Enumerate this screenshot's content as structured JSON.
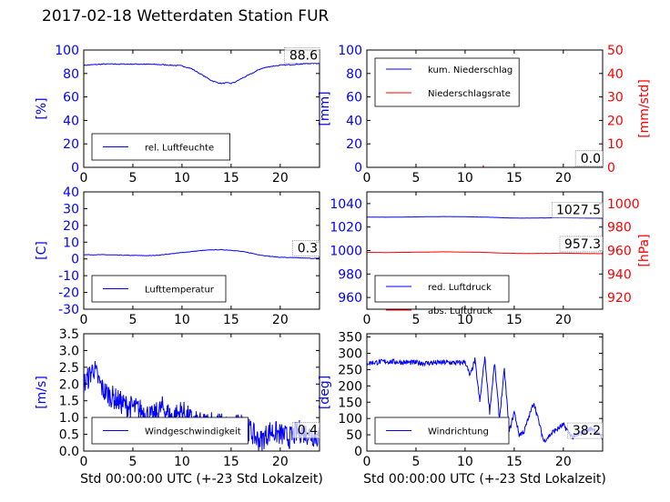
{
  "title": "2017-02-18 Wetterdaten Station FUR",
  "xlabel": "Std 00:00:00 UTC (+-23 Std Lokalzeit)",
  "colors": {
    "blue": "#0000ff",
    "red": "#ff0000",
    "black": "#000000"
  },
  "chart_data": [
    {
      "id": "humidity",
      "type": "line",
      "ylabel": "[%]",
      "ylabel_color": "#0000ff",
      "tick_color": "#0000ff",
      "xlim": [
        0,
        24
      ],
      "ylim": [
        0,
        100
      ],
      "xticks": [
        0,
        5,
        10,
        15,
        20
      ],
      "yticks": [
        0,
        20,
        40,
        60,
        80,
        100
      ],
      "grid": false,
      "legend_position": "lower-left",
      "series": [
        {
          "name": "rel. Luftfeuchte",
          "color": "#0000ff",
          "noise": 0.4,
          "x": [
            0,
            1,
            2,
            4,
            6,
            8,
            10,
            11,
            12,
            13,
            13.5,
            14,
            14.5,
            15,
            15.5,
            16,
            17,
            18,
            19,
            20,
            21,
            22,
            23,
            24
          ],
          "y": [
            87,
            87.5,
            88,
            88,
            88,
            87.5,
            86.5,
            84,
            79,
            74,
            72.5,
            71.5,
            72,
            71.5,
            73,
            75.5,
            79.5,
            84,
            86,
            87,
            87.5,
            88,
            88.5,
            88.6
          ]
        }
      ],
      "annotations": [
        {
          "text": "88.6",
          "x": 24,
          "y": 92
        }
      ]
    },
    {
      "id": "precipitation",
      "type": "line",
      "ylabel": "[mm]",
      "ylabel_color": "#0000ff",
      "tick_color": "#0000ff",
      "ylabel_right": "[mm/std]",
      "ylabel_right_color": "#ff0000",
      "tick_color_right": "#ff0000",
      "xlim": [
        0,
        24
      ],
      "ylim": [
        0,
        100
      ],
      "ylim_right": [
        0,
        50
      ],
      "xticks": [
        0,
        5,
        10,
        15,
        20
      ],
      "yticks": [
        0,
        20,
        40,
        60,
        80,
        100
      ],
      "yticks_right": [
        0,
        10,
        20,
        30,
        40,
        50
      ],
      "grid": false,
      "legend_position": "upper-left",
      "series": [
        {
          "name": "kum. Niederschlag",
          "color": "#0000ff",
          "axis": "left",
          "x": [
            0,
            24
          ],
          "y": [
            0,
            0
          ]
        },
        {
          "name": "Niederschlagsrate",
          "color": "#ff0000",
          "axis": "right",
          "x": [
            0,
            11.8,
            11.85,
            11.9,
            24
          ],
          "y": [
            0,
            0,
            0.6,
            0,
            0
          ]
        }
      ],
      "annotations": [
        {
          "text": "0.0",
          "x": 24,
          "y": 4
        },
        {
          "text": "0.0",
          "x": 24,
          "y": 4
        }
      ]
    },
    {
      "id": "temperature",
      "type": "line",
      "ylabel": "[C]",
      "ylabel_color": "#0000ff",
      "tick_color": "#0000ff",
      "xlim": [
        0,
        24
      ],
      "ylim": [
        -30,
        40
      ],
      "xticks": [
        0,
        5,
        10,
        15,
        20
      ],
      "yticks": [
        -30,
        -20,
        -10,
        0,
        10,
        20,
        30,
        40
      ],
      "grid": false,
      "legend_position": "lower-left",
      "series": [
        {
          "name": "Lufttemperatur",
          "color": "#0000ff",
          "noise": 0.15,
          "x": [
            0,
            2,
            4,
            5,
            6,
            7,
            8,
            10,
            12,
            13,
            14,
            15,
            16,
            17,
            18,
            19,
            20,
            21,
            22,
            23,
            24
          ],
          "y": [
            2.5,
            2.5,
            2.2,
            2.1,
            2.0,
            2.0,
            2.5,
            3.8,
            5.0,
            5.4,
            5.5,
            5.2,
            4.5,
            3.5,
            2.3,
            1.5,
            1.0,
            0.8,
            0.6,
            0.4,
            0.3
          ]
        }
      ],
      "annotations": [
        {
          "text": "0.3",
          "x": 24,
          "y": 4
        }
      ]
    },
    {
      "id": "pressure",
      "type": "line",
      "ylabel_right": "[hPa]",
      "ylabel_right_color": "#ff0000",
      "tick_color": "#0000ff",
      "tick_color_right": "#ff0000",
      "xlim": [
        0,
        24
      ],
      "ylim": [
        950,
        1050
      ],
      "ylim_right": [
        910,
        1010
      ],
      "xticks": [
        0,
        5,
        10,
        15,
        20
      ],
      "yticks": [
        960,
        980,
        1000,
        1020,
        1040
      ],
      "yticks_right": [
        920,
        940,
        960,
        980,
        1000
      ],
      "grid": false,
      "legend_position": "lower-left",
      "series": [
        {
          "name": "red. Luftdruck",
          "color": "#0000ff",
          "axis": "left",
          "noise": 0.05,
          "x": [
            0,
            2,
            4,
            6,
            8,
            10,
            12,
            14,
            16,
            18,
            20,
            22,
            24
          ],
          "y": [
            1028.5,
            1028.4,
            1028.6,
            1028.8,
            1029.0,
            1028.8,
            1028.5,
            1027.9,
            1027.6,
            1027.8,
            1028.0,
            1027.7,
            1027.5
          ]
        },
        {
          "name": "abs. Luftdruck",
          "color": "#ff0000",
          "axis": "right",
          "noise": 0.05,
          "x": [
            0,
            2,
            4,
            6,
            8,
            10,
            12,
            14,
            16,
            18,
            20,
            22,
            24
          ],
          "y": [
            958.4,
            958.3,
            958.5,
            958.7,
            958.9,
            958.7,
            958.4,
            957.8,
            957.5,
            957.6,
            957.8,
            957.5,
            957.3
          ]
        }
      ],
      "annotations": [
        {
          "text": "1027.5",
          "x": 24,
          "y": 1031
        },
        {
          "text": "957.3",
          "x": 24,
          "y": 1002
        }
      ]
    },
    {
      "id": "windspeed",
      "type": "line",
      "xlabel": "Std 00:00:00 UTC (+-23 Std Lokalzeit)",
      "ylabel": "[m/s]",
      "ylabel_color": "#0000ff",
      "tick_color": "#000000",
      "xlim": [
        0,
        24
      ],
      "ylim": [
        0,
        3.5
      ],
      "xticks": [
        0,
        5,
        10,
        15,
        20
      ],
      "yticks": [
        0.0,
        0.5,
        1.0,
        1.5,
        2.0,
        2.5,
        3.0,
        3.5
      ],
      "grid": false,
      "legend_position": "lower-left",
      "series": [
        {
          "name": "Windgeschwindigkeit",
          "color": "#0000ff",
          "noise": 0.35,
          "step": 0.05,
          "x": [
            0,
            0.5,
            1,
            1.5,
            2,
            3,
            4,
            5,
            6,
            7,
            8,
            9,
            10,
            11,
            12,
            13,
            14,
            15,
            16,
            17,
            17.5,
            18,
            19,
            20,
            21,
            22,
            23,
            24
          ],
          "y": [
            2.0,
            2.2,
            2.5,
            2.1,
            1.8,
            1.6,
            1.4,
            1.3,
            1.2,
            1.0,
            1.3,
            1.0,
            1.2,
            0.9,
            0.8,
            0.9,
            0.8,
            0.7,
            0.8,
            0.6,
            0.4,
            0.3,
            0.6,
            0.5,
            0.4,
            0.6,
            0.5,
            0.4
          ]
        }
      ],
      "annotations": [
        {
          "text": "0.4",
          "x": 24,
          "y": 0.5
        }
      ]
    },
    {
      "id": "winddirection",
      "type": "line",
      "xlabel": "Std 00:00:00 UTC (+-23 Std Lokalzeit)",
      "ylabel": "[deg]",
      "ylabel_color": "#0000ff",
      "tick_color": "#000000",
      "xlim": [
        0,
        24
      ],
      "ylim": [
        0,
        360
      ],
      "xticks": [
        0,
        5,
        10,
        15,
        20
      ],
      "yticks": [
        0,
        50,
        100,
        150,
        200,
        250,
        300,
        350
      ],
      "grid": false,
      "legend_position": "lower-left",
      "series": [
        {
          "name": "Windrichtung",
          "color": "#0000ff",
          "noise": 8,
          "step": 0.05,
          "x": [
            0,
            2,
            4,
            6,
            8,
            9.5,
            10,
            10.5,
            11,
            11.5,
            12,
            12.5,
            13,
            13.5,
            14,
            14.5,
            15,
            15.5,
            16,
            17,
            18,
            19,
            20,
            21,
            22,
            23,
            24
          ],
          "y": [
            270,
            275,
            272,
            270,
            272,
            270,
            275,
            230,
            280,
            150,
            290,
            120,
            270,
            100,
            250,
            60,
            120,
            50,
            60,
            150,
            30,
            60,
            80,
            40,
            60,
            70,
            38
          ]
        }
      ],
      "annotations": [
        {
          "text": "38.2",
          "x": 24,
          "y": 50
        }
      ]
    }
  ]
}
